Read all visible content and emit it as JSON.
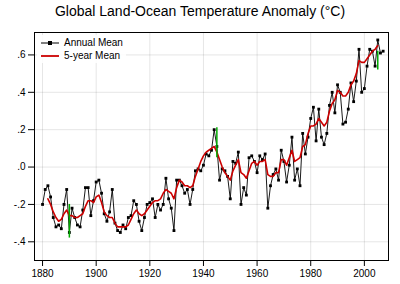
{
  "chart_data": {
    "type": "line",
    "title": "Global Land-Ocean Temperature Anomaly (°C)",
    "series": [
      {
        "name": "Annual Mean",
        "color": "#000000",
        "marker": "square",
        "x": [
          1880,
          1881,
          1882,
          1883,
          1884,
          1885,
          1886,
          1887,
          1888,
          1889,
          1890,
          1891,
          1892,
          1893,
          1894,
          1895,
          1896,
          1897,
          1898,
          1899,
          1900,
          1901,
          1902,
          1903,
          1904,
          1905,
          1906,
          1907,
          1908,
          1909,
          1910,
          1911,
          1912,
          1913,
          1914,
          1915,
          1916,
          1917,
          1918,
          1919,
          1920,
          1921,
          1922,
          1923,
          1924,
          1925,
          1926,
          1927,
          1928,
          1929,
          1930,
          1931,
          1932,
          1933,
          1934,
          1935,
          1936,
          1937,
          1938,
          1939,
          1940,
          1941,
          1942,
          1943,
          1944,
          1945,
          1946,
          1947,
          1948,
          1949,
          1950,
          1951,
          1952,
          1953,
          1954,
          1955,
          1956,
          1957,
          1958,
          1959,
          1960,
          1961,
          1962,
          1963,
          1964,
          1965,
          1966,
          1967,
          1968,
          1969,
          1970,
          1971,
          1972,
          1973,
          1974,
          1975,
          1976,
          1977,
          1978,
          1979,
          1980,
          1981,
          1982,
          1983,
          1984,
          1985,
          1986,
          1987,
          1988,
          1989,
          1990,
          1991,
          1992,
          1993,
          1994,
          1995,
          1996,
          1997,
          1998,
          1999,
          2000,
          2001,
          2002,
          2003,
          2004,
          2005,
          2006,
          2007
        ],
        "values": [
          -0.2,
          -0.12,
          -0.1,
          -0.16,
          -0.27,
          -0.32,
          -0.31,
          -0.33,
          -0.2,
          -0.12,
          -0.35,
          -0.22,
          -0.27,
          -0.31,
          -0.32,
          -0.23,
          -0.11,
          -0.11,
          -0.26,
          -0.18,
          -0.08,
          -0.07,
          -0.14,
          -0.25,
          -0.29,
          -0.24,
          -0.12,
          -0.3,
          -0.34,
          -0.35,
          -0.31,
          -0.33,
          -0.27,
          -0.26,
          -0.18,
          -0.2,
          -0.29,
          -0.34,
          -0.27,
          -0.2,
          -0.19,
          -0.17,
          -0.27,
          -0.2,
          -0.23,
          -0.2,
          -0.06,
          -0.17,
          -0.22,
          -0.34,
          -0.07,
          -0.07,
          -0.1,
          -0.14,
          -0.12,
          -0.2,
          -0.12,
          -0.02,
          -0.01,
          -0.02,
          0.01,
          0.07,
          0.06,
          0.09,
          0.2,
          0.11,
          -0.07,
          -0.01,
          -0.02,
          -0.05,
          -0.17,
          0.03,
          0.02,
          0.08,
          -0.2,
          -0.11,
          -0.15,
          0.05,
          0.06,
          0.03,
          -0.03,
          0.06,
          0.04,
          0.07,
          -0.22,
          -0.1,
          -0.04,
          -0.01,
          -0.07,
          0.09,
          0.03,
          -0.08,
          0.01,
          0.16,
          -0.07,
          -0.01,
          -0.1,
          0.18,
          0.07,
          0.16,
          0.26,
          0.32,
          0.14,
          0.31,
          0.16,
          0.12,
          0.18,
          0.33,
          0.4,
          0.29,
          0.44,
          0.4,
          0.23,
          0.24,
          0.31,
          0.45,
          0.35,
          0.46,
          0.63,
          0.4,
          0.42,
          0.54,
          0.63,
          0.62,
          0.54,
          0.68,
          0.61,
          0.62
        ]
      },
      {
        "name": "5-year Mean",
        "color": "#cc0000",
        "x": [
          1882,
          1883,
          1884,
          1885,
          1886,
          1887,
          1888,
          1889,
          1890,
          1891,
          1892,
          1893,
          1894,
          1895,
          1896,
          1897,
          1898,
          1899,
          1900,
          1901,
          1902,
          1903,
          1904,
          1905,
          1906,
          1907,
          1908,
          1909,
          1910,
          1911,
          1912,
          1913,
          1914,
          1915,
          1916,
          1917,
          1918,
          1919,
          1920,
          1921,
          1922,
          1923,
          1924,
          1925,
          1926,
          1927,
          1928,
          1929,
          1930,
          1931,
          1932,
          1933,
          1934,
          1935,
          1936,
          1937,
          1938,
          1939,
          1940,
          1941,
          1942,
          1943,
          1944,
          1945,
          1946,
          1947,
          1948,
          1949,
          1950,
          1951,
          1952,
          1953,
          1954,
          1955,
          1956,
          1957,
          1958,
          1959,
          1960,
          1961,
          1962,
          1963,
          1964,
          1965,
          1966,
          1967,
          1968,
          1969,
          1970,
          1971,
          1972,
          1973,
          1974,
          1975,
          1976,
          1977,
          1978,
          1979,
          1980,
          1981,
          1982,
          1983,
          1984,
          1985,
          1986,
          1987,
          1988,
          1989,
          1990,
          1991,
          1992,
          1993,
          1994,
          1995,
          1996,
          1997,
          1998,
          1999,
          2000,
          2001,
          2002,
          2003,
          2004,
          2005
        ],
        "values": [
          -0.17,
          -0.2,
          -0.24,
          -0.27,
          -0.29,
          -0.28,
          -0.25,
          -0.23,
          -0.26,
          -0.26,
          -0.27,
          -0.27,
          -0.26,
          -0.25,
          -0.21,
          -0.18,
          -0.18,
          -0.19,
          -0.16,
          -0.15,
          -0.19,
          -0.24,
          -0.26,
          -0.27,
          -0.27,
          -0.3,
          -0.32,
          -0.32,
          -0.32,
          -0.32,
          -0.31,
          -0.28,
          -0.25,
          -0.23,
          -0.25,
          -0.26,
          -0.25,
          -0.23,
          -0.21,
          -0.19,
          -0.18,
          -0.18,
          -0.17,
          -0.14,
          -0.12,
          -0.13,
          -0.14,
          -0.17,
          -0.11,
          -0.07,
          -0.08,
          -0.1,
          -0.1,
          -0.11,
          -0.1,
          -0.05,
          -0.01,
          0.03,
          0.06,
          0.08,
          0.09,
          0.1,
          0.11,
          0.08,
          0.04,
          0.0,
          -0.03,
          -0.05,
          -0.07,
          -0.02,
          0.01,
          0.04,
          -0.03,
          -0.04,
          -0.06,
          -0.02,
          0.02,
          0.03,
          0.01,
          0.03,
          0.03,
          0.04,
          -0.04,
          -0.05,
          -0.05,
          -0.03,
          -0.03,
          0.04,
          0.04,
          0.01,
          0.05,
          0.09,
          0.03,
          0.04,
          0.05,
          0.11,
          0.12,
          0.18,
          0.22,
          0.22,
          0.23,
          0.26,
          0.24,
          0.22,
          0.24,
          0.3,
          0.34,
          0.36,
          0.41,
          0.4,
          0.38,
          0.38,
          0.4,
          0.44,
          0.46,
          0.5,
          0.57,
          0.56,
          0.56,
          0.58,
          0.6,
          0.62,
          0.63,
          0.65
        ]
      }
    ],
    "error_bars": {
      "color": "#00aa00",
      "bars": [
        {
          "x": 1890,
          "y": -0.29,
          "yerr": 0.09
        },
        {
          "x": 1945,
          "y": 0.13,
          "yerr": 0.08
        },
        {
          "x": 2005,
          "y": 0.57,
          "yerr": 0.05
        }
      ]
    },
    "xlim": [
      1877,
      2009
    ],
    "xticks": [
      1880,
      1900,
      1920,
      1940,
      1960,
      1980,
      2000
    ],
    "ylim": [
      -0.5,
      0.72
    ],
    "yticks": [
      {
        "value": -0.4,
        "label": "-.4"
      },
      {
        "value": -0.2,
        "label": "-.2"
      },
      {
        "value": 0.0,
        "label": ".0"
      },
      {
        "value": 0.2,
        "label": ".2"
      },
      {
        "value": 0.4,
        "label": ".4"
      },
      {
        "value": 0.6,
        "label": ".6"
      }
    ],
    "grid": true,
    "legend": "upper left"
  }
}
